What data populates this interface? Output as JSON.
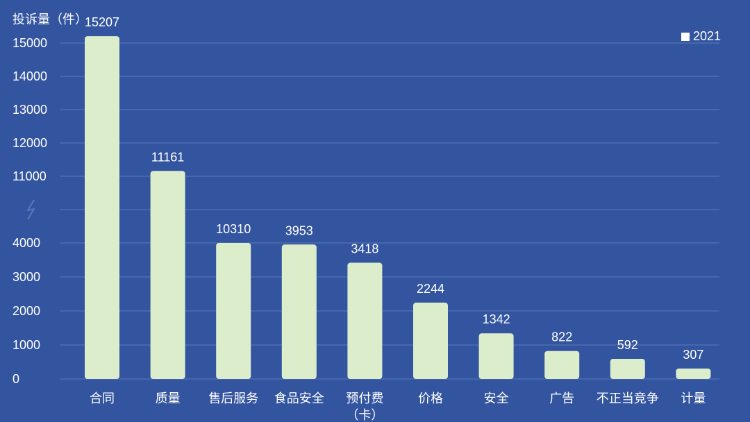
{
  "colors": {
    "background": "#3355a0",
    "bar": "#dcedcc",
    "text": "#ffffff",
    "grid": "#5a78bb"
  },
  "chart_data": {
    "type": "bar",
    "title": "",
    "xlabel": "",
    "ylabel": "投诉量（件）",
    "categories": [
      "合同",
      "质量",
      "售后服务",
      "食品安全",
      "预付费（卡）",
      "价格",
      "安全",
      "广告",
      "不正当竞争",
      "计量"
    ],
    "series": [
      {
        "name": "2021",
        "values": [
          15207,
          11161,
          10310,
          3953,
          3418,
          2244,
          1342,
          822,
          592,
          307
        ]
      }
    ],
    "y_ticks": [
      "0",
      "1000",
      "2000",
      "3000",
      "4000",
      "11000",
      "12000",
      "13000",
      "14000",
      "15000"
    ],
    "axis_break": {
      "from": 4000,
      "to": 11000
    },
    "ylim": [
      0,
      15500
    ],
    "grid": true,
    "legend_position": "top-right"
  }
}
